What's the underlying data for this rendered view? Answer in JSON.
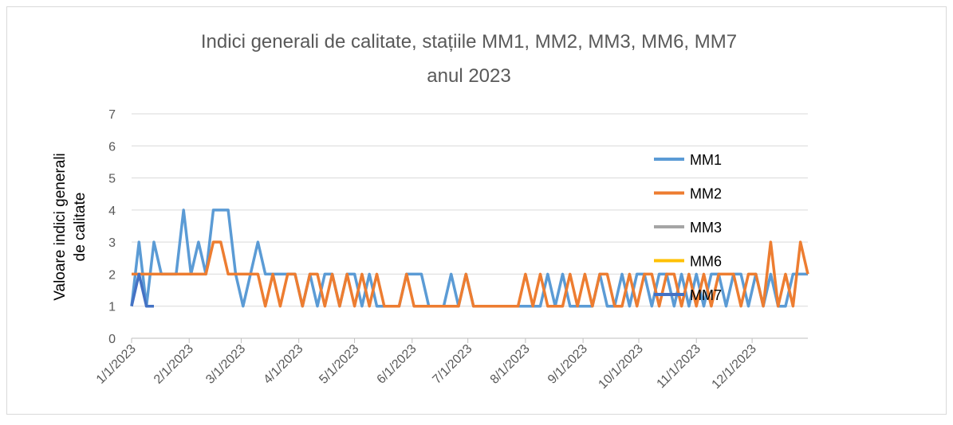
{
  "chart_data": {
    "type": "line",
    "title": [
      "Indici generali de calitate, stațiile MM1, MM2, MM3, MM6, MM7",
      "anul 2023"
    ],
    "ylabel": [
      "Valoare indici generali",
      "de calitate"
    ],
    "x": [
      "1/1/2023",
      "1/5/2023",
      "1/9/2023",
      "1/13/2023",
      "1/17/2023",
      "1/21/2023",
      "1/25/2023",
      "1/29/2023",
      "2/2/2023",
      "2/6/2023",
      "2/10/2023",
      "2/14/2023",
      "2/18/2023",
      "2/22/2023",
      "2/26/2023",
      "3/2/2023",
      "3/6/2023",
      "3/10/2023",
      "3/14/2023",
      "3/18/2023",
      "3/22/2023",
      "3/26/2023",
      "3/30/2023",
      "4/3/2023",
      "4/7/2023",
      "4/11/2023",
      "4/15/2023",
      "4/19/2023",
      "4/23/2023",
      "4/27/2023",
      "5/1/2023",
      "5/5/2023",
      "5/9/2023",
      "5/13/2023",
      "5/17/2023",
      "5/21/2023",
      "5/25/2023",
      "5/29/2023",
      "6/2/2023",
      "6/6/2023",
      "6/10/2023",
      "6/14/2023",
      "6/18/2023",
      "6/22/2023",
      "6/26/2023",
      "6/30/2023",
      "7/4/2023",
      "7/8/2023",
      "7/12/2023",
      "7/16/2023",
      "7/20/2023",
      "7/24/2023",
      "7/28/2023",
      "8/1/2023",
      "8/5/2023",
      "8/9/2023",
      "8/13/2023",
      "8/17/2023",
      "8/21/2023",
      "8/25/2023",
      "8/29/2023",
      "9/2/2023",
      "9/6/2023",
      "9/10/2023",
      "9/14/2023",
      "9/18/2023",
      "9/22/2023",
      "9/26/2023",
      "9/30/2023",
      "10/4/2023",
      "10/8/2023",
      "10/12/2023",
      "10/16/2023",
      "10/20/2023",
      "10/24/2023",
      "10/28/2023",
      "11/1/2023",
      "11/5/2023",
      "11/9/2023",
      "11/13/2023",
      "11/17/2023",
      "11/21/2023",
      "11/25/2023",
      "11/29/2023",
      "12/3/2023",
      "12/7/2023",
      "12/11/2023",
      "12/15/2023",
      "12/19/2023",
      "12/23/2023",
      "12/27/2023",
      "12/31/2023"
    ],
    "series": [
      {
        "name": "MM1",
        "color": "#5b9bd5",
        "values": [
          1,
          3,
          1,
          3,
          2,
          2,
          2,
          4,
          2,
          3,
          2,
          4,
          4,
          4,
          2,
          1,
          2,
          3,
          2,
          2,
          2,
          2,
          2,
          1,
          2,
          1,
          2,
          2,
          1,
          2,
          2,
          1,
          2,
          1,
          1,
          1,
          1,
          2,
          2,
          2,
          1,
          1,
          1,
          2,
          1,
          2,
          1,
          1,
          1,
          1,
          1,
          1,
          1,
          1,
          1,
          1,
          2,
          1,
          2,
          1,
          1,
          1,
          1,
          2,
          1,
          1,
          2,
          1,
          2,
          2,
          1,
          2,
          2,
          1,
          2,
          1,
          2,
          1,
          2,
          2,
          1,
          2,
          2,
          1,
          2,
          1,
          2,
          1,
          1,
          2,
          2,
          2
        ]
      },
      {
        "name": "MM2",
        "color": "#ed7d31",
        "values": [
          2,
          2,
          2,
          2,
          2,
          2,
          2,
          2,
          2,
          2,
          2,
          3,
          3,
          2,
          2,
          2,
          2,
          2,
          1,
          2,
          1,
          2,
          2,
          1,
          2,
          2,
          1,
          2,
          1,
          2,
          1,
          2,
          1,
          2,
          1,
          1,
          1,
          2,
          1,
          1,
          1,
          1,
          1,
          1,
          1,
          2,
          1,
          1,
          1,
          1,
          1,
          1,
          1,
          2,
          1,
          2,
          1,
          1,
          1,
          2,
          1,
          2,
          1,
          2,
          2,
          1,
          1,
          2,
          1,
          2,
          2,
          1,
          2,
          2,
          1,
          2,
          1,
          2,
          1,
          2,
          2,
          2,
          1,
          2,
          2,
          1,
          3,
          1,
          2,
          1,
          3,
          2
        ]
      },
      {
        "name": "MM3",
        "color": "#a5a5a5",
        "values": [
          null,
          null,
          null,
          null,
          null,
          null,
          null,
          null,
          null,
          null,
          null,
          null,
          null,
          null,
          null,
          null,
          null,
          null,
          null,
          null,
          null,
          null,
          null,
          null,
          null,
          null,
          null,
          null,
          null,
          null,
          null,
          null,
          null,
          null,
          null,
          null,
          null,
          null,
          null,
          null,
          null,
          null,
          null,
          null,
          null,
          null,
          null,
          null,
          null,
          null,
          null,
          null,
          null,
          null,
          null,
          null,
          null,
          null,
          null,
          null,
          null,
          null,
          null,
          null,
          null,
          null,
          null,
          null,
          null,
          null,
          null,
          null,
          null,
          null,
          null,
          null,
          null,
          null,
          null,
          null,
          null,
          null,
          null,
          null,
          null,
          null,
          null,
          null,
          null,
          null,
          null,
          null
        ]
      },
      {
        "name": "MM6",
        "color": "#ffc000",
        "values": [
          null,
          null,
          null,
          null,
          null,
          null,
          null,
          null,
          null,
          null,
          null,
          null,
          null,
          null,
          null,
          null,
          null,
          null,
          null,
          null,
          null,
          null,
          null,
          null,
          null,
          null,
          null,
          null,
          null,
          null,
          null,
          null,
          null,
          null,
          null,
          null,
          null,
          null,
          null,
          null,
          null,
          null,
          null,
          null,
          null,
          null,
          null,
          null,
          null,
          null,
          null,
          null,
          null,
          null,
          null,
          null,
          null,
          null,
          null,
          null,
          null,
          null,
          null,
          null,
          null,
          null,
          null,
          null,
          null,
          null,
          null,
          null,
          null,
          null,
          null,
          null,
          null,
          null,
          null,
          null,
          null,
          null,
          null,
          null,
          null,
          null,
          null,
          null,
          null,
          null,
          null,
          null
        ]
      },
      {
        "name": "MM7",
        "color": "#4472c4",
        "values": [
          1,
          2,
          1,
          1,
          null,
          null,
          null,
          null,
          null,
          null,
          null,
          null,
          null,
          null,
          null,
          null,
          null,
          null,
          null,
          null,
          null,
          null,
          null,
          null,
          null,
          null,
          null,
          null,
          null,
          null,
          null,
          null,
          null,
          null,
          null,
          null,
          null,
          null,
          null,
          null,
          null,
          null,
          null,
          null,
          null,
          null,
          null,
          null,
          null,
          null,
          null,
          null,
          null,
          null,
          null,
          null,
          null,
          null,
          null,
          null,
          null,
          null,
          null,
          null,
          null,
          null,
          null,
          null,
          null,
          null,
          null,
          null,
          null,
          null,
          null,
          null,
          null,
          null,
          null,
          null,
          null,
          null,
          null,
          null,
          null,
          null,
          null,
          null,
          null,
          null,
          null,
          null
        ]
      }
    ],
    "xlim": [
      "1/1/2023",
      "12/31/2023"
    ],
    "xticks": [
      "1/1/2023",
      "2/1/2023",
      "3/1/2023",
      "4/1/2023",
      "5/1/2023",
      "6/1/2023",
      "7/1/2023",
      "8/1/2023",
      "9/1/2023",
      "10/1/2023",
      "11/1/2023",
      "12/1/2023"
    ],
    "ylim": [
      0,
      7
    ],
    "yticks": [
      0,
      1,
      2,
      3,
      4,
      5,
      6,
      7
    ],
    "grid": true,
    "legend": "right"
  }
}
